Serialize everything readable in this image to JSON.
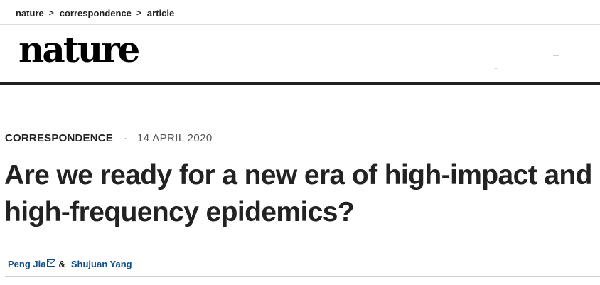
{
  "breadcrumb": {
    "items": [
      "nature",
      "correspondence",
      "article"
    ],
    "separator": ">"
  },
  "header": {
    "logo": "nature"
  },
  "article": {
    "type": "CORRESPONDENCE",
    "separator_dot": "·",
    "date": "14 APRIL 2020",
    "title": "Are we ready for a new era of high-impact and high-frequency epidemics?",
    "authors": [
      {
        "name": "Peng Jia",
        "email_icon": "envelope-icon"
      },
      {
        "name": "Shujuan Yang"
      }
    ],
    "author_joiner": "&"
  },
  "colors": {
    "text": "#222222",
    "author_link": "#0b4f8a",
    "header_rule": "#222222",
    "date": "#555555"
  }
}
